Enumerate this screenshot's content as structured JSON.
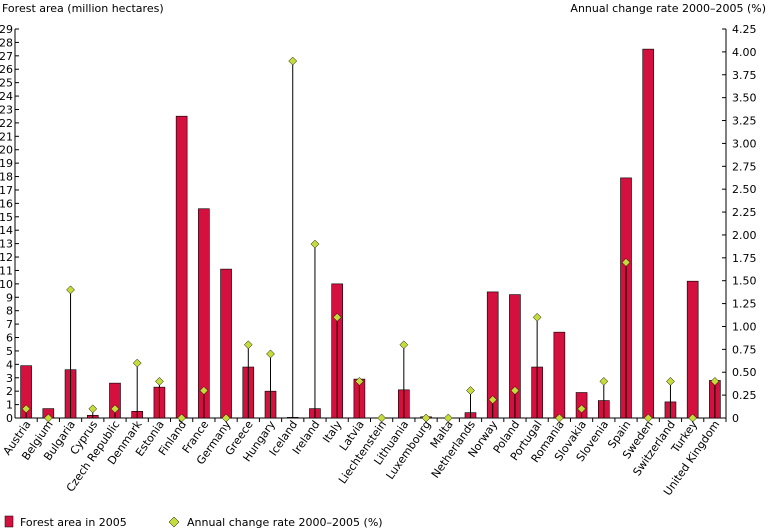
{
  "chart_data": {
    "type": "bar",
    "left_axis_title": "Forest area (million hectares)",
    "right_axis_title": "Annual change rate 2000–2005 (%)",
    "left_ylim": [
      0,
      29
    ],
    "right_ylim": [
      0,
      4.25
    ],
    "left_ticks": [
      "0",
      "1",
      "2",
      "3",
      "4",
      "5",
      "6",
      "7",
      "8",
      "9",
      "10",
      "11",
      "12",
      "13",
      "14",
      "15",
      "16",
      "17",
      "18",
      "19",
      "20",
      "21",
      "22",
      "23",
      "24",
      "25",
      "26",
      "27",
      "28",
      "29"
    ],
    "right_ticks": [
      "0",
      "0.25",
      "0.50",
      "0.75",
      "1.00",
      "1.25",
      "1.50",
      "1.75",
      "2.00",
      "2.25",
      "2.50",
      "2.75",
      "3.00",
      "3.25",
      "3.50",
      "3.75",
      "4.00",
      "4.25"
    ],
    "grid": false,
    "legend_position": "bottom-left",
    "categories": [
      "Austria",
      "Belgium",
      "Bulgaria",
      "Cyprus",
      "Czech Republic",
      "Denmark",
      "Estonia",
      "Finland",
      "France",
      "Germany",
      "Greece",
      "Hungary",
      "Iceland",
      "Ireland",
      "Italy",
      "Latvia",
      "Liechtenstein",
      "Lithuania",
      "Luxembourg",
      "Malta",
      "Netherlands",
      "Norway",
      "Poland",
      "Portugal",
      "Romania",
      "Slovakia",
      "Slovenia",
      "Spain",
      "Sweden",
      "Switzerland",
      "Turkey",
      "United Kingdom"
    ],
    "series": [
      {
        "name": "Forest area in 2005",
        "axis": "left",
        "color": "#d4103f",
        "values": [
          3.9,
          0.7,
          3.6,
          0.2,
          2.6,
          0.5,
          2.3,
          22.5,
          15.6,
          11.1,
          3.8,
          2.0,
          0.05,
          0.7,
          10.0,
          2.9,
          0.01,
          2.1,
          0.09,
          0.0,
          0.4,
          9.4,
          9.2,
          3.8,
          6.4,
          1.9,
          1.3,
          17.9,
          27.5,
          1.2,
          10.2,
          2.8
        ]
      },
      {
        "name": "Annual change rate 2000–2005 (%)",
        "axis": "right",
        "color": "#c6dc3a",
        "values": [
          0.1,
          0.0,
          1.4,
          0.1,
          0.1,
          0.6,
          0.4,
          0.0,
          0.3,
          0.0,
          0.8,
          0.7,
          3.9,
          1.9,
          1.1,
          0.4,
          0.0,
          0.8,
          0.0,
          0.0,
          0.3,
          0.2,
          0.3,
          1.1,
          0.0,
          0.1,
          0.4,
          1.7,
          0.0,
          0.4,
          0.0,
          0.4
        ]
      }
    ]
  }
}
